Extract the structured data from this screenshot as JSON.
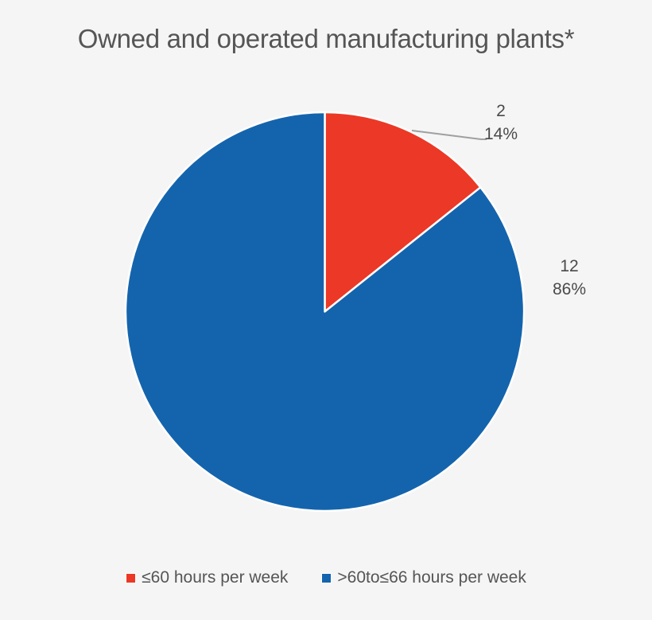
{
  "title": "Owned and operated manufacturing plants*",
  "chart_data": {
    "type": "pie",
    "title": "Owned and operated manufacturing plants*",
    "categories": [
      "≤60 hours per week",
      ">60to≤66 hours per week"
    ],
    "values": [
      2,
      12
    ],
    "percentages": [
      "14%",
      "86%"
    ],
    "colors": [
      "#ec3826",
      "#1464ad"
    ],
    "start_angle_deg": 0,
    "direction": "clockwise",
    "legend_position": "bottom",
    "data_labels": [
      {
        "value": "2",
        "percent": "14%"
      },
      {
        "value": "12",
        "percent": "86%"
      }
    ]
  },
  "legend": [
    {
      "label": "≤60 hours per week",
      "color": "#ec3826"
    },
    {
      "label": ">60to≤66 hours per week",
      "color": "#1464ad"
    }
  ]
}
